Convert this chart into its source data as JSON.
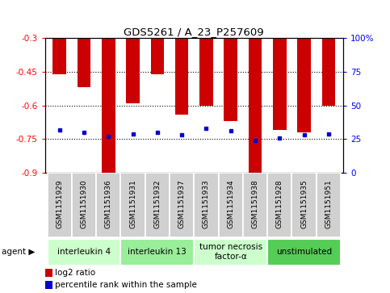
{
  "title": "GDS5261 / A_23_P257609",
  "samples": [
    "GSM1151929",
    "GSM1151930",
    "GSM1151936",
    "GSM1151931",
    "GSM1151932",
    "GSM1151937",
    "GSM1151933",
    "GSM1151934",
    "GSM1151938",
    "GSM1151928",
    "GSM1151935",
    "GSM1151951"
  ],
  "log2_ratio": [
    -0.46,
    -0.52,
    -0.91,
    -0.59,
    -0.46,
    -0.64,
    -0.6,
    -0.67,
    -0.91,
    -0.71,
    -0.72,
    -0.6
  ],
  "percentile_rank": [
    32,
    30,
    27,
    29,
    30,
    28,
    33,
    31,
    24,
    26,
    28,
    29
  ],
  "ylim_left": [
    -0.9,
    -0.3
  ],
  "ylim_right": [
    0,
    100
  ],
  "yticks_left": [
    -0.9,
    -0.75,
    -0.6,
    -0.45,
    -0.3
  ],
  "yticks_right": [
    0,
    25,
    50,
    75,
    100
  ],
  "grid_values": [
    -0.45,
    -0.6,
    -0.75
  ],
  "bar_color": "#cc0000",
  "dot_color": "#0000cc",
  "agent_groups": [
    {
      "label": "interleukin 4",
      "start": 0,
      "end": 3,
      "color": "#ccffcc"
    },
    {
      "label": "interleukin 13",
      "start": 3,
      "end": 6,
      "color": "#99ee99"
    },
    {
      "label": "tumor necrosis\nfactor-α",
      "start": 6,
      "end": 9,
      "color": "#ccffcc"
    },
    {
      "label": "unstimulated",
      "start": 9,
      "end": 12,
      "color": "#55cc55"
    }
  ],
  "legend_label_log2": "log2 ratio",
  "legend_label_pct": "percentile rank within the sample",
  "bar_color_legend": "#cc0000",
  "dot_color_legend": "#0000cc",
  "bar_width": 0.55,
  "agent_label": "agent"
}
